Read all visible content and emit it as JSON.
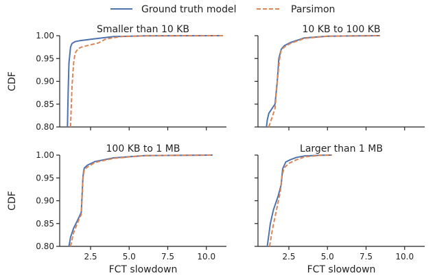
{
  "legend": {
    "position": "top-center",
    "entries": [
      {
        "label": "Ground truth model",
        "color": "#4c72b0",
        "dash": "solid"
      },
      {
        "label": "Parsimon",
        "color": "#dd8452",
        "dash": "dashed"
      }
    ]
  },
  "chart_data": [
    {
      "type": "line",
      "title": "Smaller than 10 KB",
      "xlabel": "",
      "ylabel": "CDF",
      "xlim": [
        0.5,
        11.3
      ],
      "ylim": [
        0.8,
        1.0
      ],
      "xticks": [
        2.5,
        5.0,
        7.5,
        10.0
      ],
      "xtick_labels": [
        "",
        "",
        "",
        ""
      ],
      "yticks": [
        0.8,
        0.85,
        0.9,
        0.95,
        1.0
      ],
      "ytick_labels": [
        "0.80",
        "0.85",
        "0.90",
        "0.95",
        "1.00"
      ],
      "series": [
        {
          "name": "Ground truth model",
          "x": [
            1.0,
            1.05,
            1.1,
            1.2,
            1.3,
            1.5,
            1.8,
            2.5,
            4.0,
            6.0,
            10.9
          ],
          "y": [
            0.8,
            0.88,
            0.94,
            0.975,
            0.983,
            0.987,
            0.989,
            0.992,
            0.998,
            0.9995,
            1.0
          ]
        },
        {
          "name": "Parsimon",
          "x": [
            1.2,
            1.3,
            1.4,
            1.5,
            1.7,
            2.0,
            2.5,
            3.0,
            3.5,
            4.5,
            6.0,
            11.2
          ],
          "y": [
            0.8,
            0.89,
            0.94,
            0.962,
            0.972,
            0.976,
            0.98,
            0.984,
            0.993,
            0.998,
            0.9995,
            1.0
          ]
        }
      ]
    },
    {
      "type": "line",
      "title": "10 KB to 100 KB",
      "xlabel": "",
      "ylabel": "",
      "xlim": [
        0.5,
        11.3
      ],
      "ylim": [
        0.8,
        1.0
      ],
      "xticks": [
        2.5,
        5.0,
        7.5,
        10.0
      ],
      "xtick_labels": [
        "",
        "",
        "",
        ""
      ],
      "yticks": [
        0.8,
        0.85,
        0.9,
        0.95,
        1.0
      ],
      "ytick_labels": [
        "",
        "",
        "",
        "",
        ""
      ],
      "series": [
        {
          "name": "Ground truth model",
          "x": [
            1.05,
            1.1,
            1.2,
            1.4,
            1.6,
            1.75,
            1.85,
            2.0,
            2.2,
            2.6,
            3.5,
            5.0,
            8.4
          ],
          "y": [
            0.8,
            0.815,
            0.83,
            0.84,
            0.85,
            0.9,
            0.95,
            0.97,
            0.978,
            0.985,
            0.995,
            0.999,
            1.0
          ]
        },
        {
          "name": "Parsimon",
          "x": [
            1.2,
            1.4,
            1.6,
            1.75,
            1.9,
            2.0,
            2.2,
            2.6,
            3.5,
            5.0,
            8.4
          ],
          "y": [
            0.8,
            0.82,
            0.84,
            0.9,
            0.95,
            0.968,
            0.975,
            0.983,
            0.994,
            0.999,
            1.0
          ]
        }
      ]
    },
    {
      "type": "line",
      "title": "100 KB to 1 MB",
      "xlabel": "FCT slowdown",
      "ylabel": "CDF",
      "xlim": [
        0.5,
        11.3
      ],
      "ylim": [
        0.8,
        1.0
      ],
      "xticks": [
        2.5,
        5.0,
        7.5,
        10.0
      ],
      "xtick_labels": [
        "2.5",
        "5.0",
        "7.5",
        "10.0"
      ],
      "yticks": [
        0.8,
        0.85,
        0.9,
        0.95,
        1.0
      ],
      "ytick_labels": [
        "0.80",
        "0.85",
        "0.90",
        "0.95",
        "1.00"
      ],
      "series": [
        {
          "name": "Ground truth model",
          "x": [
            1.1,
            1.2,
            1.4,
            1.7,
            1.9,
            2.0,
            2.05,
            2.1,
            2.3,
            2.8,
            4.0,
            6.0,
            10.4
          ],
          "y": [
            0.8,
            0.82,
            0.84,
            0.86,
            0.875,
            0.95,
            0.965,
            0.972,
            0.978,
            0.986,
            0.994,
            0.999,
            1.0
          ]
        },
        {
          "name": "Parsimon",
          "x": [
            1.2,
            1.4,
            1.7,
            1.9,
            2.0,
            2.05,
            2.1,
            2.3,
            2.8,
            4.0,
            6.0,
            10.4
          ],
          "y": [
            0.8,
            0.83,
            0.855,
            0.87,
            0.945,
            0.96,
            0.968,
            0.974,
            0.984,
            0.993,
            0.999,
            1.0
          ]
        }
      ]
    },
    {
      "type": "line",
      "title": "Larger than 1 MB",
      "xlabel": "FCT slowdown",
      "ylabel": "",
      "xlim": [
        0.5,
        11.3
      ],
      "ylim": [
        0.8,
        1.0
      ],
      "xticks": [
        2.5,
        5.0,
        7.5,
        10.0
      ],
      "xtick_labels": [
        "2.5",
        "5.0",
        "7.5",
        "10.0"
      ],
      "yticks": [
        0.8,
        0.85,
        0.9,
        0.95,
        1.0
      ],
      "ytick_labels": [
        "",
        "",
        "",
        "",
        ""
      ],
      "series": [
        {
          "name": "Ground truth model",
          "x": [
            1.1,
            1.3,
            1.5,
            1.8,
            2.0,
            2.1,
            2.3,
            2.6,
            3.0,
            3.5,
            4.5,
            5.3
          ],
          "y": [
            0.8,
            0.85,
            0.88,
            0.91,
            0.935,
            0.97,
            0.985,
            0.99,
            0.995,
            0.998,
            0.9995,
            1.0
          ]
        },
        {
          "name": "Parsimon",
          "x": [
            1.25,
            1.45,
            1.7,
            1.95,
            2.05,
            2.2,
            2.5,
            3.0,
            3.5,
            4.5,
            5.3
          ],
          "y": [
            0.8,
            0.84,
            0.88,
            0.92,
            0.955,
            0.972,
            0.982,
            0.99,
            0.996,
            0.9995,
            1.0
          ]
        }
      ]
    }
  ]
}
